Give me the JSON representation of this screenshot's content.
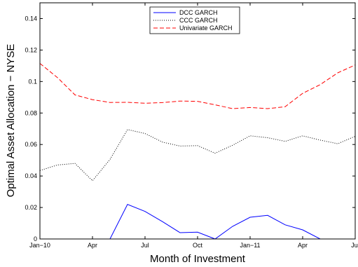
{
  "chart_data": {
    "type": "line",
    "title": "",
    "xlabel": "Month of Investment",
    "ylabel": "Optimal Asset Allocation − NYSE",
    "ylim": [
      0,
      0.15
    ],
    "xlim": [
      0,
      18
    ],
    "x_ticks": [
      {
        "x": 0,
        "label": "Jan−10"
      },
      {
        "x": 3,
        "label": "Apr"
      },
      {
        "x": 6,
        "label": "Jul"
      },
      {
        "x": 9,
        "label": "Oct"
      },
      {
        "x": 12,
        "label": "Jan−11"
      },
      {
        "x": 15,
        "label": "Apr"
      },
      {
        "x": 18,
        "label": "Jul"
      }
    ],
    "y_ticks": [
      {
        "y": 0,
        "label": "0"
      },
      {
        "y": 0.02,
        "label": "0.02"
      },
      {
        "y": 0.04,
        "label": "0.04"
      },
      {
        "y": 0.06,
        "label": "0.06"
      },
      {
        "y": 0.08,
        "label": "0.08"
      },
      {
        "y": 0.1,
        "label": "0.1"
      },
      {
        "y": 0.12,
        "label": "0.12"
      },
      {
        "y": 0.14,
        "label": "0.14"
      }
    ],
    "grid": false,
    "legend_position": "top-center",
    "series": [
      {
        "name": "DCC GARCH",
        "color": "#0000ff",
        "style": "solid",
        "x": [
          0,
          1,
          2,
          3,
          4,
          5,
          6,
          7,
          8,
          9,
          10,
          11,
          12,
          13,
          14,
          15,
          16,
          17,
          18
        ],
        "values": [
          0,
          0,
          0,
          0,
          0,
          0.022,
          0.0175,
          0.011,
          0.004,
          0.0043,
          0,
          0.008,
          0.0138,
          0.015,
          0.009,
          0.0058,
          0,
          0,
          0
        ]
      },
      {
        "name": "CCC GARCH",
        "color": "#000000",
        "style": "dotted",
        "x": [
          0,
          1,
          2,
          3,
          4,
          5,
          6,
          7,
          8,
          9,
          10,
          11,
          12,
          13,
          14,
          15,
          16,
          17,
          18
        ],
        "values": [
          0.0435,
          0.047,
          0.048,
          0.037,
          0.0505,
          0.0695,
          0.067,
          0.0615,
          0.059,
          0.0593,
          0.0545,
          0.0595,
          0.0655,
          0.0643,
          0.062,
          0.0655,
          0.0628,
          0.0605,
          0.0652
        ]
      },
      {
        "name": "Univariate GARCH",
        "color": "#ff0000",
        "style": "dashed",
        "x": [
          0,
          1,
          2,
          3,
          4,
          5,
          6,
          7,
          8,
          9,
          10,
          11,
          12,
          13,
          14,
          15,
          16,
          17,
          18
        ],
        "values": [
          0.1115,
          0.1025,
          0.0915,
          0.0885,
          0.0867,
          0.0868,
          0.0862,
          0.0866,
          0.0876,
          0.0874,
          0.0852,
          0.0828,
          0.0835,
          0.0828,
          0.084,
          0.0925,
          0.098,
          0.1055,
          0.1105
        ]
      }
    ]
  }
}
